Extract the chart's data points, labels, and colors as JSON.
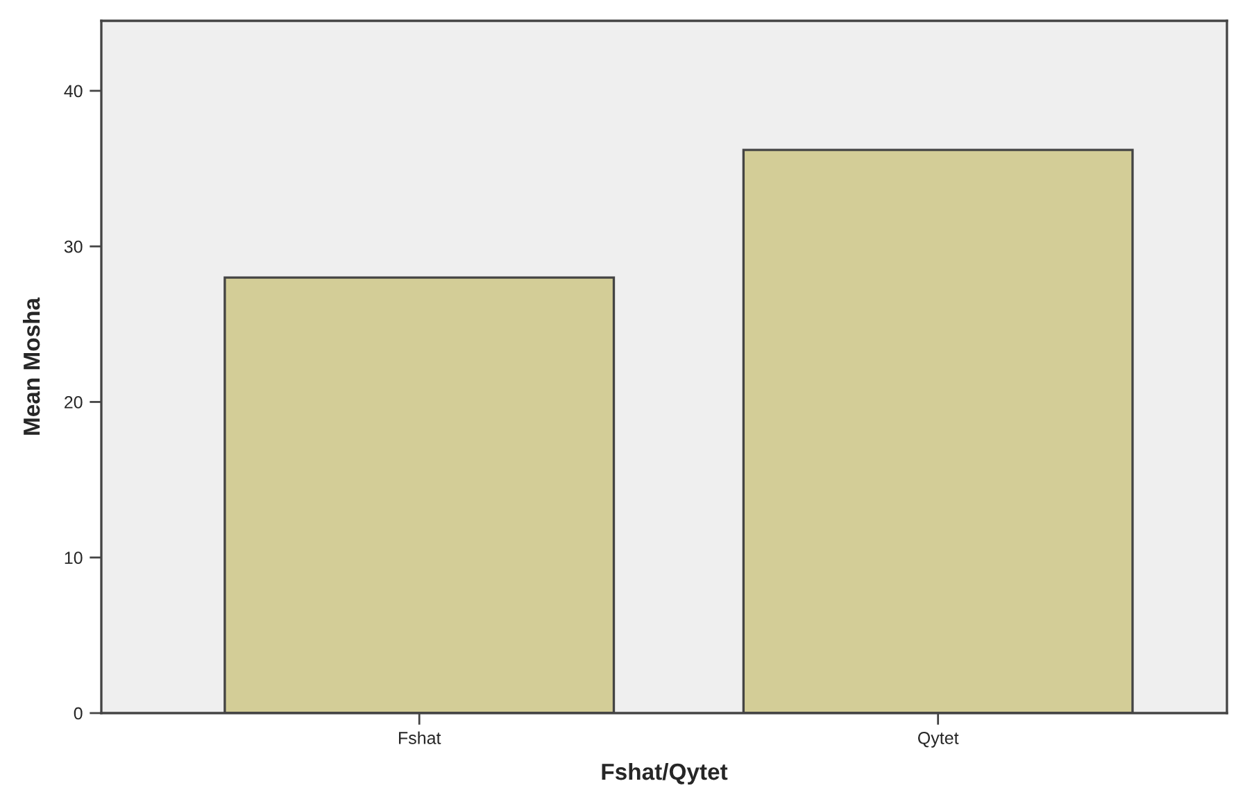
{
  "chart_data": {
    "type": "bar",
    "xlabel": "Fshat/Qytet",
    "ylabel": "Mean Mosha",
    "categories": [
      "Fshat",
      "Qytet"
    ],
    "values": [
      28.0,
      36.2
    ],
    "color": "#d3cd97",
    "ylim": [
      0,
      44.5
    ],
    "yticks": [
      0,
      10,
      20,
      30,
      40
    ],
    "grid": false,
    "legend": false
  }
}
